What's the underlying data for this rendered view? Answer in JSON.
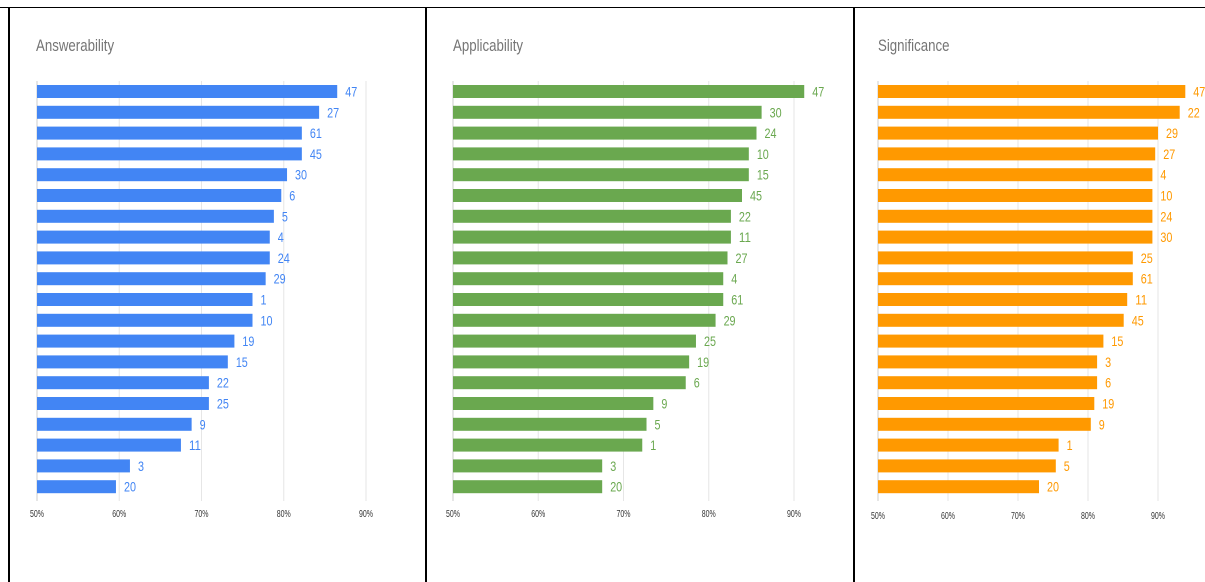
{
  "chart_data": [
    {
      "type": "bar",
      "orientation": "horizontal",
      "title": "Answerability",
      "color": "#4285F4",
      "xlim": [
        50,
        95
      ],
      "xticks": [
        "50%",
        "60%",
        "70%",
        "80%",
        "90%"
      ],
      "grid": true,
      "categories": [
        "47",
        "27",
        "61",
        "45",
        "30",
        "6",
        "5",
        "4",
        "24",
        "29",
        "1",
        "10",
        "19",
        "15",
        "22",
        "25",
        "9",
        "11",
        "3",
        "20"
      ],
      "values": [
        86.5,
        84.3,
        82.2,
        82.2,
        80.4,
        79.7,
        78.8,
        78.3,
        78.3,
        77.8,
        76.2,
        76.2,
        74.0,
        73.2,
        70.9,
        70.9,
        68.8,
        67.5,
        61.3,
        59.6
      ]
    },
    {
      "type": "bar",
      "orientation": "horizontal",
      "title": "Applicability",
      "color": "#6AA84F",
      "xlim": [
        50,
        95
      ],
      "xticks": [
        "50%",
        "60%",
        "70%",
        "80%",
        "90%"
      ],
      "grid": true,
      "categories": [
        "47",
        "30",
        "24",
        "10",
        "15",
        "45",
        "22",
        "11",
        "27",
        "4",
        "61",
        "29",
        "25",
        "19",
        "6",
        "9",
        "5",
        "1",
        "3",
        "20"
      ],
      "values": [
        91.2,
        86.2,
        85.6,
        84.7,
        84.7,
        83.9,
        82.6,
        82.6,
        82.2,
        81.7,
        81.7,
        80.8,
        78.5,
        77.7,
        77.3,
        73.5,
        72.7,
        72.2,
        67.5,
        67.5
      ]
    },
    {
      "type": "bar",
      "orientation": "horizontal",
      "title": "Significance",
      "color": "#FF9900",
      "xlim": [
        50,
        95
      ],
      "xticks": [
        "50%",
        "60%",
        "70%",
        "80%",
        "90%"
      ],
      "grid": true,
      "categories": [
        "47",
        "22",
        "29",
        "27",
        "4",
        "10",
        "24",
        "30",
        "25",
        "61",
        "11",
        "45",
        "15",
        "3",
        "6",
        "19",
        "9",
        "1",
        "5",
        "20"
      ],
      "values": [
        93.9,
        93.1,
        90.0,
        89.6,
        89.2,
        89.2,
        89.2,
        89.2,
        86.4,
        86.4,
        85.6,
        85.1,
        82.2,
        81.3,
        81.3,
        80.9,
        80.4,
        75.8,
        75.4,
        73.0
      ]
    }
  ]
}
